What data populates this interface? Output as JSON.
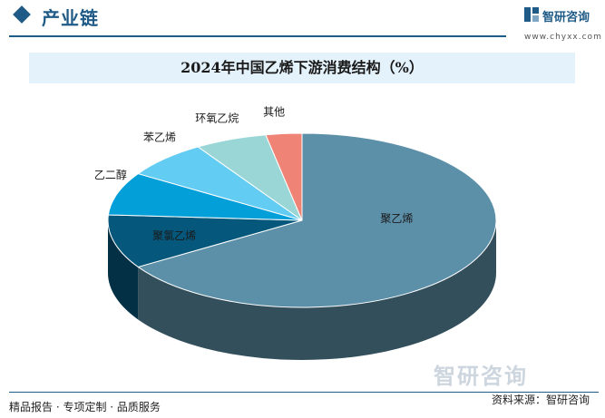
{
  "header": {
    "section_title": "产业链",
    "logo_name": "智研咨询",
    "logo_url": "www.chyxx.com"
  },
  "footer": {
    "slogan": "精品报告 · 专项定制 · 品质服务",
    "source": "资料来源：智研咨询",
    "brand": "智研咨询"
  },
  "colors": {
    "brand": "#1f5b86",
    "title_band": "#e4f2fb"
  },
  "chart_data": {
    "type": "pie",
    "title": "2024年中国乙烯下游消费结构（%）",
    "labels": [
      "聚乙烯",
      "聚氯乙烯",
      "乙二醇",
      "苯乙烯",
      "环氧乙烷",
      "其他"
    ],
    "values": [
      66,
      10,
      8,
      7,
      6,
      3
    ],
    "colors": [
      "#5c8fa8",
      "#05587c",
      "#039fd8",
      "#62ccf2",
      "#9bd6d6",
      "#ef8376"
    ]
  }
}
